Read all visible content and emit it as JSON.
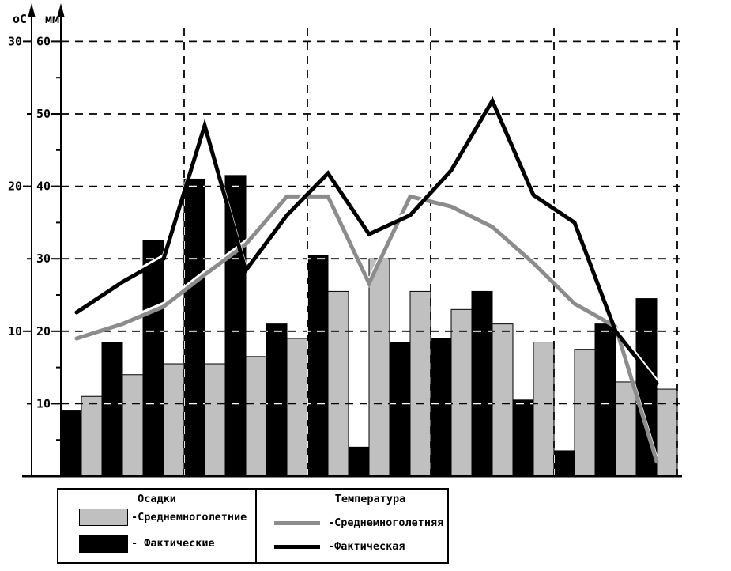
{
  "figure": {
    "background": "#ffffff",
    "gray_bar_color": "#c0c0c0",
    "gray_line_color": "#8c8c8c",
    "black_color": "#000000"
  },
  "legend": {
    "precipitation": {
      "title": "Осадки",
      "avg_label": "-Среднемноголетние",
      "actual_label": "- Фактические"
    },
    "temperature": {
      "title": "Температура",
      "avg_label": "-Среднемноголетняя",
      "actual_label": "-Фактическая"
    }
  },
  "chart_data": {
    "type": "combo-bar-line",
    "categories_count": 15,
    "x_axis": {
      "category_labels_visible": false,
      "vertical_gridline_every_n_categories": 3
    },
    "left_axis": {
      "label": "оС",
      "min": 0,
      "max": 30,
      "major_ticks": [
        30,
        20,
        10
      ],
      "minor_tick_step": 5
    },
    "right_axis": {
      "label": "мм",
      "min": 0,
      "max": 60,
      "major_ticks": [
        60,
        50,
        40,
        30,
        20,
        10
      ],
      "minor_tick_step": 5
    },
    "grid": {
      "style": "dashed",
      "horizontal_at_mm": [
        60,
        50,
        40,
        30,
        20,
        10
      ]
    },
    "series": [
      {
        "id": "precip_actual",
        "name": "Осадки фактические",
        "type": "bar",
        "axis": "right",
        "unit": "мм",
        "color": "#000000",
        "values": [
          9,
          18.5,
          32.5,
          41,
          41.5,
          21,
          30.5,
          4,
          18.5,
          19,
          25.5,
          10.5,
          3.5,
          21,
          24.5
        ]
      },
      {
        "id": "precip_avg",
        "name": "Осадки среднемноголетние",
        "type": "bar",
        "axis": "right",
        "unit": "мм",
        "color": "#c0c0c0",
        "values": [
          11,
          14,
          15.5,
          15.5,
          16.5,
          19,
          25.5,
          30,
          25.5,
          23,
          21,
          18.5,
          17.5,
          13,
          12
        ]
      },
      {
        "id": "temp_avg",
        "name": "Температура среднемноголетняя",
        "type": "line",
        "axis": "left",
        "unit": "оС",
        "color": "#8c8c8c",
        "values": [
          9.5,
          10.5,
          11.7,
          13.9,
          16,
          19.3,
          19.3,
          13.3,
          19.3,
          18.6,
          17.2,
          14.7,
          11.9,
          10.3,
          1
        ]
      },
      {
        "id": "temp_actual",
        "name": "Температура фактическая",
        "type": "line",
        "axis": "left",
        "unit": "оС",
        "color": "#000000",
        "values": [
          11.3,
          13.4,
          15,
          24.2,
          14.2,
          18,
          20.9,
          16.7,
          18,
          21.1,
          25.9,
          19.4,
          17.5,
          10,
          6.4
        ]
      }
    ]
  }
}
